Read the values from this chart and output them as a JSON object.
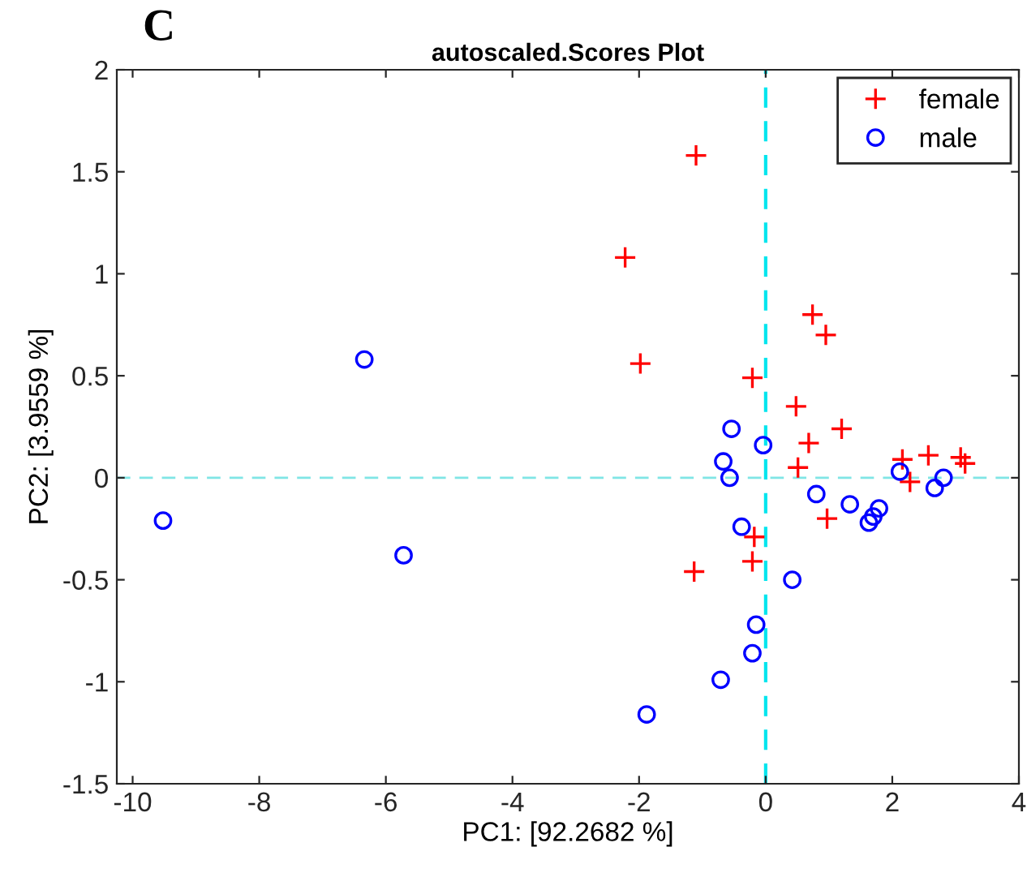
{
  "chart_data": {
    "type": "scatter",
    "title": "autoscaled.Scores Plot",
    "xlabel": "PC1: [92.2682 %]",
    "ylabel": "PC2: [3.9559 %]",
    "annotations": [
      "C"
    ],
    "series": [
      {
        "name": "female",
        "color": "#ff0000",
        "marker": "cross",
        "x": [
          -1.1,
          -2.22,
          -1.98,
          -0.21,
          0.74,
          0.95,
          0.48,
          1.2,
          0.68,
          0.51,
          2.16,
          2.57,
          3.08,
          3.15,
          2.28,
          0.97,
          -0.18,
          -1.13,
          -0.21
        ],
        "values": [
          1.58,
          1.08,
          0.56,
          0.49,
          0.8,
          0.7,
          0.35,
          0.24,
          0.17,
          0.05,
          0.09,
          0.11,
          0.1,
          0.07,
          -0.02,
          -0.2,
          -0.29,
          -0.46,
          -0.41
        ]
      },
      {
        "name": "male",
        "color": "#0000ff",
        "marker": "circle",
        "x": [
          -0.54,
          -0.04,
          -0.67,
          -0.57,
          2.12,
          2.81,
          2.67,
          0.8,
          1.33,
          1.79,
          1.7,
          1.63,
          -0.38,
          0.42,
          -0.15,
          -0.21,
          -0.71,
          -1.88,
          -9.52,
          -6.34,
          -5.72
        ],
        "values": [
          0.24,
          0.16,
          0.08,
          0.0,
          0.03,
          0.0,
          -0.05,
          -0.08,
          -0.13,
          -0.15,
          -0.19,
          -0.22,
          -0.24,
          -0.5,
          -0.72,
          -0.86,
          -0.99,
          -1.16,
          -0.21,
          0.58,
          -0.38
        ]
      }
    ],
    "ref_lines": [
      {
        "axis": "x",
        "value": 0,
        "color": "#00e5ee",
        "line_style": "dashed"
      },
      {
        "axis": "y",
        "value": 0,
        "color": "#7fe5e5",
        "line_style": "dashed"
      }
    ],
    "xlim": [
      -10.25,
      4
    ],
    "xticks": [
      -10,
      -8,
      -6,
      -4,
      -2,
      0,
      2,
      4
    ],
    "ylim": [
      -1.5,
      2
    ],
    "yticks": [
      -1.5,
      -1,
      -0.5,
      0,
      0.5,
      1,
      1.5,
      2
    ],
    "grid": false,
    "legend": "top right"
  }
}
